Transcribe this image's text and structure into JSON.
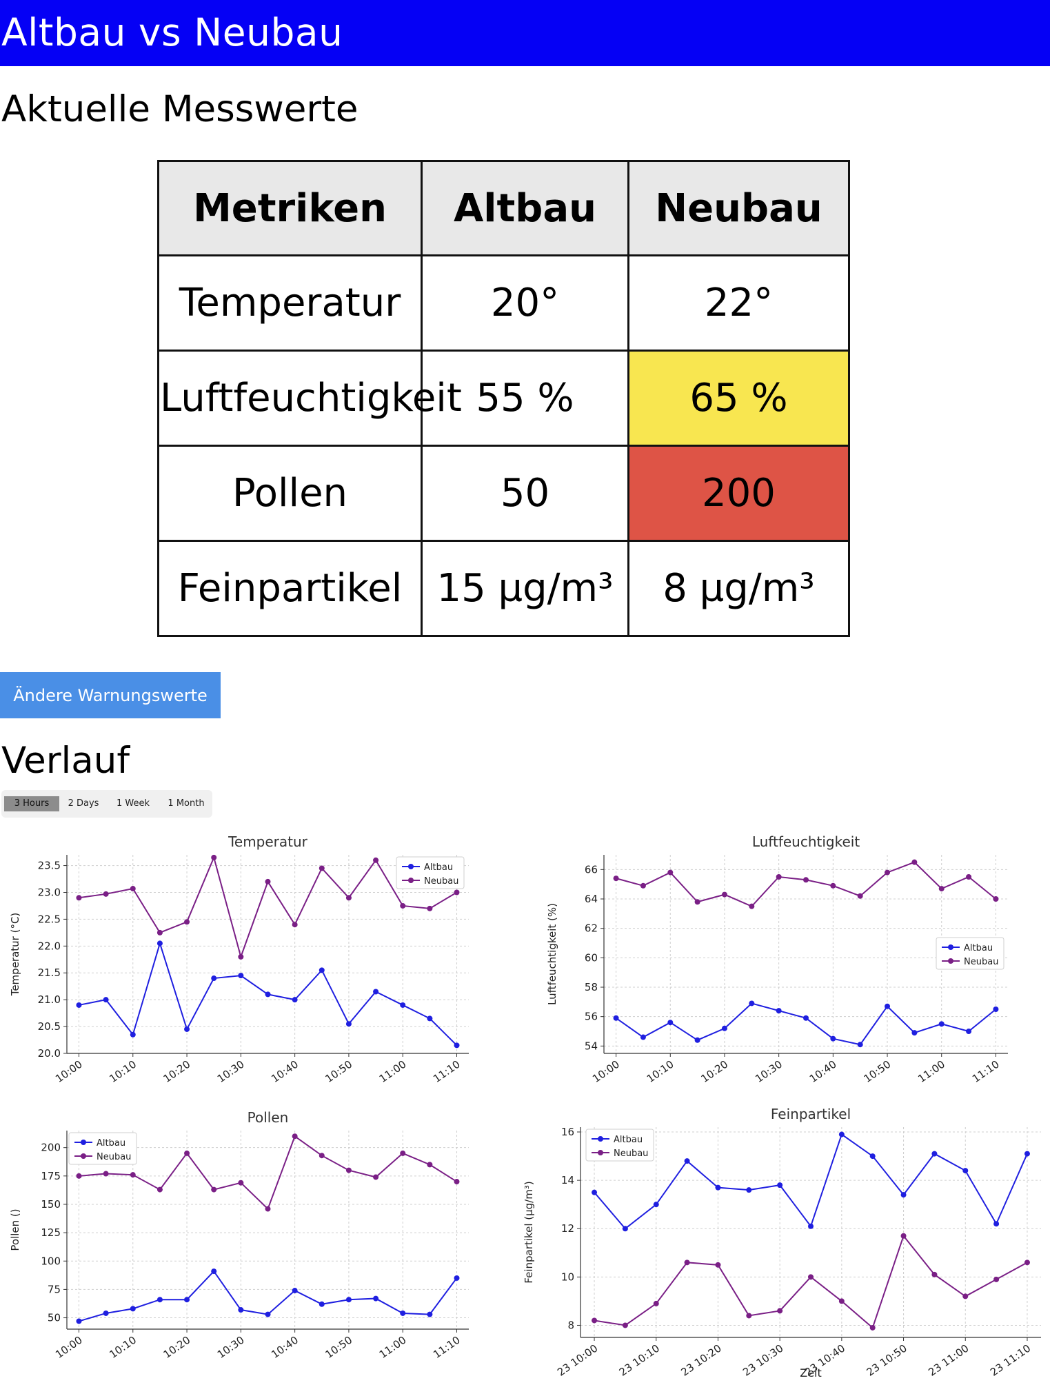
{
  "header": {
    "title": "Altbau vs Neubau"
  },
  "current": {
    "title": "Aktuelle Messwerte",
    "columns": [
      "Metriken",
      "Altbau",
      "Neubau"
    ],
    "rows": [
      {
        "metric": "Temperatur",
        "altbau": "20°",
        "neubau": "22°",
        "neubau_status": "normal"
      },
      {
        "metric": "Luftfeuchtigkeit",
        "altbau": "55 %",
        "neubau": "65 %",
        "neubau_status": "warning"
      },
      {
        "metric": "Pollen",
        "altbau": "50",
        "neubau": "200",
        "neubau_status": "alert"
      },
      {
        "metric": "Feinpartikel",
        "altbau": "15 µg/m³",
        "neubau": "8 µg/m³",
        "neubau_status": "normal"
      }
    ],
    "status_colors": {
      "warning": "#f8e650",
      "alert": "#de5446"
    }
  },
  "warn_button": {
    "label": "Ändere Warnungswerte"
  },
  "history": {
    "title": "Verlauf",
    "ranges": [
      "3 Hours",
      "2 Days",
      "1 Week",
      "1 Month"
    ],
    "active_range": "3 Hours"
  },
  "series_colors": {
    "Altbau": "#1f1fe0",
    "Neubau": "#7a1f86"
  },
  "chart_data": [
    {
      "type": "line",
      "title": "Temperatur",
      "ylabel": "Temperatur (°C)",
      "xlabel": "",
      "x": [
        "10:00",
        "10:05",
        "10:10",
        "10:15",
        "10:20",
        "10:25",
        "10:30",
        "10:35",
        "10:40",
        "10:45",
        "10:50",
        "10:55",
        "11:00",
        "11:05",
        "11:10"
      ],
      "x_tick_labels": [
        "10:00",
        "10:10",
        "10:20",
        "10:30",
        "10:40",
        "10:50",
        "11:00",
        "11:10"
      ],
      "ylim": [
        20.0,
        23.7
      ],
      "y_ticks": [
        20.0,
        20.5,
        21.0,
        21.5,
        22.0,
        22.5,
        23.0,
        23.5
      ],
      "y_tick_labels": [
        "20.0",
        "20.5",
        "21.0",
        "21.5",
        "22.0",
        "22.5",
        "23.0",
        "23.5"
      ],
      "legend": "top-right",
      "grid": true,
      "series": [
        {
          "name": "Altbau",
          "values": [
            20.9,
            21.0,
            20.35,
            22.05,
            20.45,
            21.4,
            21.45,
            21.1,
            21.0,
            21.55,
            20.55,
            21.15,
            20.9,
            20.65,
            20.15
          ]
        },
        {
          "name": "Neubau",
          "values": [
            22.9,
            22.97,
            23.07,
            22.25,
            22.45,
            23.65,
            21.8,
            23.2,
            22.4,
            23.45,
            22.9,
            23.6,
            22.75,
            22.7,
            23.0
          ]
        }
      ]
    },
    {
      "type": "line",
      "title": "Luftfeuchtigkeit",
      "ylabel": "Luftfeuchtigkeit (%)",
      "xlabel": "",
      "x": [
        "10:00",
        "10:05",
        "10:10",
        "10:15",
        "10:20",
        "10:25",
        "10:30",
        "10:35",
        "10:40",
        "10:45",
        "10:50",
        "10:55",
        "11:00",
        "11:05",
        "11:10"
      ],
      "x_tick_labels": [
        "10:00",
        "10:10",
        "10:20",
        "10:30",
        "10:40",
        "10:50",
        "11:00",
        "11:10"
      ],
      "ylim": [
        53.5,
        67.0
      ],
      "y_ticks": [
        54,
        56,
        58,
        60,
        62,
        64,
        66
      ],
      "y_tick_labels": [
        "54",
        "56",
        "58",
        "60",
        "62",
        "64",
        "66"
      ],
      "legend": "center-right",
      "grid": true,
      "series": [
        {
          "name": "Altbau",
          "values": [
            55.9,
            54.6,
            55.6,
            54.4,
            55.2,
            56.9,
            56.4,
            55.9,
            54.5,
            54.1,
            56.7,
            54.9,
            55.5,
            55.0,
            56.5
          ]
        },
        {
          "name": "Neubau",
          "values": [
            65.4,
            64.9,
            65.8,
            63.8,
            64.3,
            63.5,
            65.5,
            65.3,
            64.9,
            64.2,
            65.8,
            66.5,
            64.7,
            65.5,
            64.0
          ]
        }
      ]
    },
    {
      "type": "line",
      "title": "Pollen",
      "ylabel": "Pollen ()",
      "xlabel": "",
      "x": [
        "10:00",
        "10:05",
        "10:10",
        "10:15",
        "10:20",
        "10:25",
        "10:30",
        "10:35",
        "10:40",
        "10:45",
        "10:50",
        "10:55",
        "11:00",
        "11:05",
        "11:10"
      ],
      "x_tick_labels": [
        "10:00",
        "10:10",
        "10:20",
        "10:30",
        "10:40",
        "10:50",
        "11:00",
        "11:10"
      ],
      "ylim": [
        40,
        215
      ],
      "y_ticks": [
        50,
        75,
        100,
        125,
        150,
        175,
        200
      ],
      "y_tick_labels": [
        "50",
        "75",
        "100",
        "125",
        "150",
        "175",
        "200"
      ],
      "legend": "top-left",
      "grid": true,
      "series": [
        {
          "name": "Altbau",
          "values": [
            47,
            54,
            58,
            66,
            66,
            91,
            57,
            53,
            74,
            62,
            66,
            67,
            54,
            53,
            85
          ]
        },
        {
          "name": "Neubau",
          "values": [
            175,
            177,
            176,
            163,
            195,
            163,
            169,
            146,
            210,
            193,
            180,
            174,
            195,
            185,
            170
          ]
        }
      ]
    },
    {
      "type": "line",
      "title": "Feinpartikel",
      "ylabel": "Feinpartikel (µg/m³)",
      "xlabel": "Zeit",
      "x": [
        "23 10:00",
        "23 10:05",
        "23 10:10",
        "23 10:15",
        "23 10:20",
        "23 10:25",
        "23 10:30",
        "23 10:35",
        "23 10:40",
        "23 10:45",
        "23 10:50",
        "23 10:55",
        "23 11:00",
        "23 11:05",
        "23 11:10"
      ],
      "x_tick_labels": [
        "23 10:00",
        "23 10:10",
        "23 10:20",
        "23 10:30",
        "23 10:40",
        "23 10:50",
        "23 11:00",
        "23 11:10"
      ],
      "ylim": [
        7.5,
        16.2
      ],
      "y_ticks": [
        8,
        10,
        12,
        14,
        16
      ],
      "y_tick_labels": [
        "8",
        "10",
        "12",
        "14",
        "16"
      ],
      "legend": "top-left",
      "grid": true,
      "series": [
        {
          "name": "Altbau",
          "values": [
            13.5,
            12.0,
            13.0,
            14.8,
            13.7,
            13.6,
            13.8,
            12.1,
            15.9,
            15.0,
            13.4,
            15.1,
            14.4,
            12.2,
            15.1
          ]
        },
        {
          "name": "Neubau",
          "values": [
            8.2,
            8.0,
            8.9,
            10.6,
            10.5,
            8.4,
            8.6,
            10.0,
            9.0,
            7.9,
            11.7,
            10.1,
            9.2,
            9.9,
            10.6
          ]
        }
      ]
    }
  ]
}
